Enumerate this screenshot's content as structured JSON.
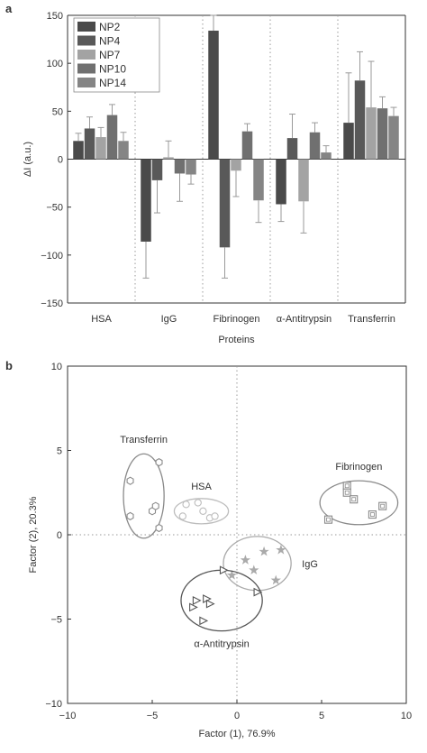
{
  "panels": {
    "a_label": "a",
    "b_label": "b"
  },
  "chart_data": [
    {
      "type": "bar",
      "panel": "a",
      "title": "",
      "xlabel": "Proteins",
      "ylabel": "ΔI (a.u.)",
      "ylim": [
        -150,
        150
      ],
      "yticks": [
        -150,
        -100,
        -50,
        0,
        50,
        100,
        150
      ],
      "grid": false,
      "legend_placement": "top-left",
      "categories": [
        "HSA",
        "IgG",
        "Fibrinogen",
        "α-Antitrypsin",
        "Transferrin"
      ],
      "series": [
        {
          "name": "NP2",
          "color": "#4a4a4a",
          "values": [
            19,
            -86,
            134,
            -47,
            38
          ],
          "errors": [
            8,
            38,
            16,
            18,
            52
          ]
        },
        {
          "name": "NP4",
          "color": "#595959",
          "values": [
            32,
            -22,
            -92,
            22,
            82
          ],
          "errors": [
            12,
            34,
            32,
            25,
            30
          ]
        },
        {
          "name": "NP7",
          "color": "#a3a3a3",
          "values": [
            23,
            2,
            -12,
            -44,
            54
          ],
          "errors": [
            10,
            17,
            27,
            33,
            48
          ]
        },
        {
          "name": "NP10",
          "color": "#707070",
          "values": [
            46,
            -15,
            29,
            28,
            53
          ],
          "errors": [
            11,
            29,
            8,
            10,
            12
          ]
        },
        {
          "name": "NP14",
          "color": "#858585",
          "values": [
            19,
            -16,
            -43,
            7,
            45
          ],
          "errors": [
            9,
            10,
            23,
            7,
            9
          ]
        }
      ]
    },
    {
      "type": "scatter",
      "panel": "b",
      "title": "",
      "xlabel": "Factor (1), 76.9%",
      "ylabel": "Factor (2), 20.3%",
      "xlim": [
        -10,
        10
      ],
      "ylim": [
        -10,
        10
      ],
      "xticks": [
        -10,
        -5,
        0,
        5,
        10
      ],
      "yticks": [
        -10,
        -5,
        0,
        5,
        10
      ],
      "grid": false,
      "reference_lines": "dotted lines at x=0 and y=0",
      "groups": [
        {
          "name": "Transferrin",
          "marker": "hexagon",
          "color": "#8a8a8a",
          "points": [
            [
              -6.3,
              3.2
            ],
            [
              -4.6,
              4.3
            ],
            [
              -5.0,
              1.4
            ],
            [
              -4.8,
              1.7
            ],
            [
              -4.6,
              0.4
            ],
            [
              -6.3,
              1.1
            ]
          ],
          "ellipse": {
            "center": [
              -5.5,
              2.3
            ],
            "radii": [
              1.2,
              2.5
            ]
          },
          "label": "Transferrin"
        },
        {
          "name": "HSA",
          "marker": "circle",
          "color": "#bdbdbd",
          "points": [
            [
              -3.2,
              1.1
            ],
            [
              -2.3,
              1.9
            ],
            [
              -2.0,
              1.4
            ],
            [
              -1.6,
              1.0
            ],
            [
              -1.3,
              1.1
            ],
            [
              -3.0,
              1.8
            ]
          ],
          "ellipse": {
            "center": [
              -2.1,
              1.4
            ],
            "radii": [
              1.6,
              0.75
            ]
          },
          "label": "HSA"
        },
        {
          "name": "Fibrinogen",
          "marker": "square",
          "color": "#8a8a8a",
          "points": [
            [
              6.5,
              2.9
            ],
            [
              6.5,
              2.5
            ],
            [
              6.9,
              2.1
            ],
            [
              8.0,
              1.2
            ],
            [
              8.6,
              1.7
            ],
            [
              5.4,
              0.9
            ]
          ],
          "ellipse": {
            "center": [
              7.2,
              1.9
            ],
            "radii": [
              2.3,
              1.3
            ]
          },
          "label": "Fibrinogen"
        },
        {
          "name": "IgG",
          "marker": "star",
          "color": "#aaaaaa",
          "points": [
            [
              0.5,
              -1.5
            ],
            [
              1.6,
              -1.0
            ],
            [
              2.6,
              -0.9
            ],
            [
              1.0,
              -2.1
            ],
            [
              2.3,
              -2.7
            ],
            [
              -0.3,
              -2.4
            ]
          ],
          "ellipse": {
            "center": [
              1.2,
              -1.7
            ],
            "radii": [
              2.0,
              1.6
            ]
          },
          "label": "IgG"
        },
        {
          "name": "α-Antitrypsin",
          "marker": "triangle-right",
          "color": "#555555",
          "points": [
            [
              -1.8,
              -3.8
            ],
            [
              -2.4,
              -3.9
            ],
            [
              -2.6,
              -4.3
            ],
            [
              -1.6,
              -4.1
            ],
            [
              -0.8,
              -2.1
            ],
            [
              1.2,
              -3.4
            ],
            [
              -2.0,
              -5.1
            ]
          ],
          "ellipse": {
            "center": [
              -0.9,
              -3.9
            ],
            "radii": [
              2.4,
              1.8
            ]
          },
          "label": "α-Antitrypsin"
        }
      ]
    }
  ]
}
